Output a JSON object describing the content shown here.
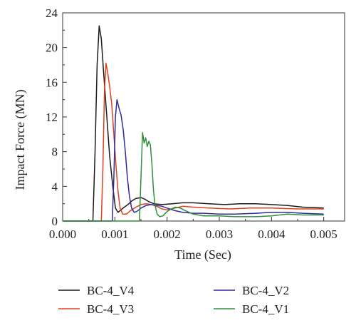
{
  "chart_data": {
    "type": "line",
    "title": "",
    "xlabel": "Time (Sec)",
    "ylabel": "Impact Force (MN)",
    "xlim": [
      0.0,
      0.0054
    ],
    "ylim": [
      0,
      24
    ],
    "xticks": [
      0.0,
      0.001,
      0.002,
      0.003,
      0.004,
      0.005
    ],
    "xtick_labels": [
      "0.000",
      "0.001",
      "0.002",
      "0.003",
      "0.004",
      "0.005"
    ],
    "yticks": [
      0,
      4,
      8,
      12,
      16,
      20,
      24
    ],
    "ytick_labels": [
      "0",
      "4",
      "8",
      "12",
      "16",
      "20",
      "24"
    ],
    "grid": false,
    "legend_placement": "bottom",
    "series": [
      {
        "name": "BC-4_V4",
        "color": "#1a1a1a",
        "x": [
          0.0,
          0.00058,
          0.00062,
          0.00066,
          0.0007,
          0.00074,
          0.00078,
          0.00084,
          0.0009,
          0.00096,
          0.00101,
          0.00106,
          0.00112,
          0.00118,
          0.00125,
          0.00132,
          0.0014,
          0.0015,
          0.00158,
          0.00166,
          0.00175,
          0.0019,
          0.0021,
          0.0023,
          0.0025,
          0.0028,
          0.0031,
          0.0034,
          0.0037,
          0.004,
          0.0043,
          0.0046,
          0.005
        ],
        "y": [
          0,
          0,
          8,
          18,
          22.5,
          21,
          17.5,
          12.5,
          7.5,
          4,
          1.5,
          1.0,
          1.3,
          1.6,
          1.9,
          2.3,
          2.6,
          2.7,
          2.5,
          2.2,
          2.0,
          1.9,
          2.0,
          2.1,
          2.1,
          2.0,
          1.9,
          2.0,
          2.0,
          1.9,
          1.8,
          1.6,
          1.5
        ]
      },
      {
        "name": "BC-4_V3",
        "color": "#e0401c",
        "x": [
          0.0,
          0.00074,
          0.00077,
          0.0008,
          0.00083,
          0.00086,
          0.0009,
          0.00094,
          0.00098,
          0.00102,
          0.00106,
          0.0011,
          0.00115,
          0.00122,
          0.0013,
          0.0014,
          0.0015,
          0.0016,
          0.0017,
          0.0018,
          0.0019,
          0.002,
          0.00215,
          0.0023,
          0.0025,
          0.0028,
          0.0032,
          0.0036,
          0.004,
          0.0045,
          0.005
        ],
        "y": [
          0,
          0,
          6,
          15,
          18.2,
          17.2,
          15.5,
          13.5,
          10,
          6.5,
          3.5,
          1.5,
          0.8,
          0.8,
          1.2,
          1.6,
          1.9,
          2.0,
          1.9,
          1.7,
          1.4,
          1.3,
          1.5,
          1.7,
          1.6,
          1.5,
          1.4,
          1.5,
          1.5,
          1.4,
          1.4
        ]
      },
      {
        "name": "BC-4_V2",
        "color": "#2e2a9e",
        "x": [
          0.0,
          0.00095,
          0.00098,
          0.00101,
          0.00104,
          0.00108,
          0.00112,
          0.00116,
          0.0012,
          0.00124,
          0.00128,
          0.00132,
          0.00137,
          0.00142,
          0.0015,
          0.0016,
          0.0017,
          0.0018,
          0.0019,
          0.002,
          0.00215,
          0.0023,
          0.0025,
          0.0027,
          0.003,
          0.0033,
          0.0037,
          0.004,
          0.0043,
          0.0046,
          0.005
        ],
        "y": [
          0,
          0,
          5,
          12,
          14.0,
          13.0,
          12.2,
          10.5,
          8,
          5,
          2.8,
          1.5,
          1.0,
          1.1,
          1.5,
          1.8,
          1.9,
          1.8,
          1.7,
          1.5,
          1.2,
          1.0,
          0.9,
          0.9,
          0.8,
          0.8,
          0.9,
          1.0,
          1.0,
          0.9,
          0.8
        ]
      },
      {
        "name": "BC-4_V1",
        "color": "#2f8f3a",
        "x": [
          0.0,
          0.00147,
          0.0015,
          0.00153,
          0.00156,
          0.00159,
          0.00162,
          0.00165,
          0.00168,
          0.00171,
          0.00174,
          0.00177,
          0.00181,
          0.00186,
          0.00192,
          0.002,
          0.00208,
          0.00216,
          0.00225,
          0.00235,
          0.0025,
          0.0027,
          0.003,
          0.0033,
          0.0037,
          0.004,
          0.0043,
          0.0046,
          0.005
        ],
        "y": [
          0,
          0,
          5,
          10.2,
          9.0,
          9.6,
          8.6,
          9.2,
          8.8,
          6.5,
          3.5,
          1.8,
          0.8,
          0.5,
          0.6,
          1.1,
          1.4,
          1.6,
          1.5,
          1.2,
          0.8,
          0.6,
          0.6,
          0.5,
          0.5,
          0.6,
          0.8,
          0.7,
          0.7
        ]
      }
    ]
  }
}
